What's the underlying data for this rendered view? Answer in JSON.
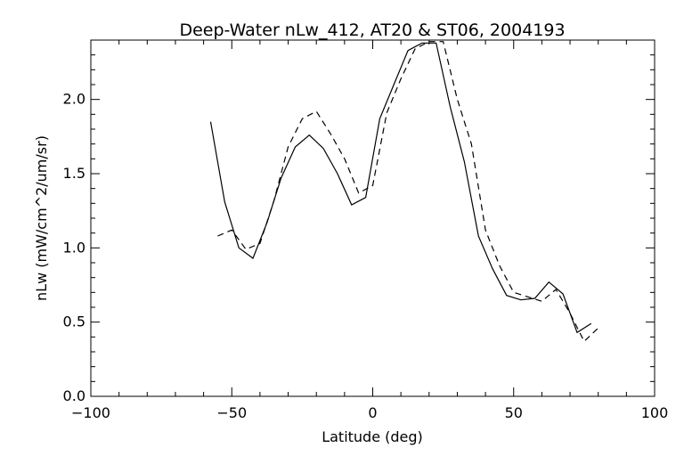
{
  "chart_data": {
    "type": "line",
    "title": "Deep-Water nLw_412, AT20 & ST06, 2004193",
    "xlabel": "Latitude (deg)",
    "ylabel": "nLw (mW/cm^2/um/sr)",
    "xlim": [
      -100,
      100
    ],
    "ylim": [
      0.0,
      2.4
    ],
    "xticks": [
      -100,
      -50,
      0,
      50,
      100
    ],
    "xtick_labels": [
      "−100",
      "−50",
      "0",
      "50",
      "100"
    ],
    "yticks": [
      0.0,
      0.5,
      1.0,
      1.5,
      2.0
    ],
    "ytick_labels": [
      "0.0",
      "0.5",
      "1.0",
      "1.5",
      "2.0"
    ],
    "grid": false,
    "legend": "none",
    "series": [
      {
        "style": "solid",
        "color": "#000000",
        "x": [
          -57.5,
          -52.5,
          -47.5,
          -42.5,
          -37.5,
          -32.5,
          -27.5,
          -22.5,
          -17.5,
          -12.5,
          -7.5,
          -2.5,
          2.5,
          7.5,
          12.5,
          17.5,
          22.5,
          27.5,
          32.5,
          37.5,
          42.5,
          47.5,
          52.5,
          57.5,
          62.5,
          67.5,
          72.5,
          77.5
        ],
        "y": [
          1.85,
          1.31,
          1.0,
          0.93,
          1.17,
          1.47,
          1.68,
          1.76,
          1.67,
          1.5,
          1.29,
          1.34,
          1.87,
          2.1,
          2.33,
          2.38,
          2.38,
          1.95,
          1.58,
          1.08,
          0.86,
          0.68,
          0.65,
          0.66,
          0.77,
          0.69,
          0.43,
          0.49
        ]
      },
      {
        "style": "dashed",
        "color": "#000000",
        "x": [
          -55.0,
          -50.0,
          -45.0,
          -40.0,
          -35.0,
          -30.0,
          -25.0,
          -20.0,
          -15.0,
          -10.0,
          -5.0,
          0.0,
          5.0,
          10.0,
          15.0,
          20.0,
          25.0,
          30.0,
          35.0,
          40.0,
          45.0,
          50.0,
          55.0,
          60.0,
          65.0,
          70.0,
          75.0,
          80.0
        ],
        "y": [
          1.08,
          1.12,
          0.99,
          1.03,
          1.32,
          1.68,
          1.87,
          1.92,
          1.77,
          1.6,
          1.37,
          1.42,
          1.91,
          2.14,
          2.34,
          2.39,
          2.39,
          2.0,
          1.7,
          1.12,
          0.88,
          0.7,
          0.67,
          0.64,
          0.72,
          0.56,
          0.37,
          0.46
        ]
      }
    ]
  }
}
